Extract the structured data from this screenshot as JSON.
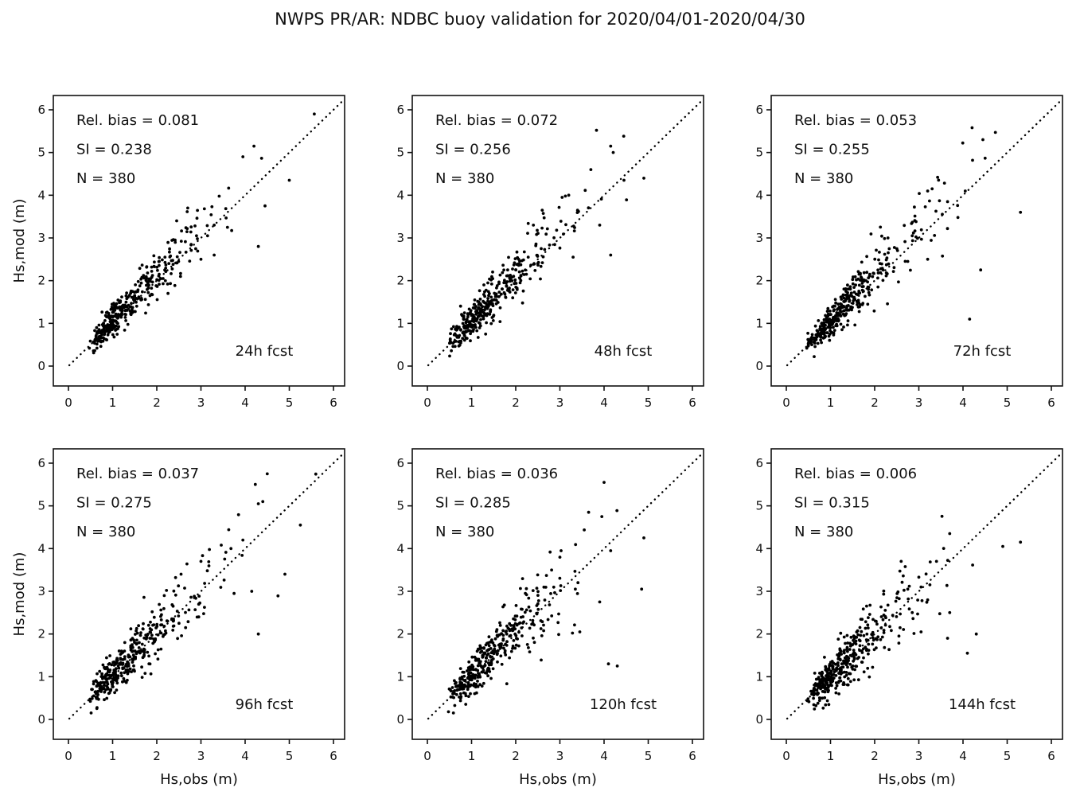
{
  "figure": {
    "title": "NWPS PR/AR: NDBC buoy validation for 2020/04/01-2020/04/30",
    "background_color": "#ffffff",
    "foreground_color": "#111111",
    "point_color": "#000000"
  },
  "axes": {
    "xlabel": "Hs,obs (m)",
    "ylabel": "Hs,mod (m)",
    "xlim": [
      0,
      6
    ],
    "ylim": [
      0,
      6
    ],
    "xticks": [
      "0",
      "1",
      "2",
      "3",
      "4",
      "5",
      "6"
    ],
    "yticks": [
      "0",
      "1",
      "2",
      "3",
      "4",
      "5",
      "6"
    ],
    "grid": false,
    "reference_line": {
      "type": "dotted",
      "from": [
        0,
        0
      ],
      "to": [
        6,
        6
      ],
      "meaning": "1:1 line"
    }
  },
  "chart_data": [
    {
      "type": "scatter",
      "fcst_label": "24h fcst",
      "stats_lines": [
        "Rel. bias =  0.081",
        "SI =  0.238",
        "N = 380"
      ],
      "stats": {
        "rel_bias": 0.081,
        "si": 0.238,
        "n": 380
      },
      "xlabel": "Hs,obs (m)",
      "ylabel": "Hs,mod (m)",
      "xlim": [
        0,
        6
      ],
      "ylim": [
        0,
        6
      ],
      "cluster": {
        "n": 367,
        "seed": 101,
        "x_min": 0.45,
        "x_scale": 0.52,
        "bias": 0.081,
        "si": 0.238
      },
      "outliers": [
        [
          3.3,
          3.3
        ],
        [
          2.7,
          3.7
        ],
        [
          3.0,
          2.5
        ],
        [
          3.6,
          3.25
        ],
        [
          3.3,
          2.6
        ],
        [
          3.95,
          4.9
        ],
        [
          4.2,
          5.15
        ],
        [
          5.0,
          4.35
        ],
        [
          4.3,
          2.8
        ],
        [
          2.45,
          3.4
        ],
        [
          3.15,
          3.05
        ],
        [
          4.45,
          3.75
        ],
        [
          2.9,
          3.05
        ]
      ]
    },
    {
      "type": "scatter",
      "fcst_label": "48h fcst",
      "stats_lines": [
        "Rel. bias =  0.072",
        "SI =  0.256",
        "N = 380"
      ],
      "stats": {
        "rel_bias": 0.072,
        "si": 0.256,
        "n": 380
      },
      "xlabel": "Hs,obs (m)",
      "ylabel": "Hs,mod (m)",
      "xlim": [
        0,
        6
      ],
      "ylim": [
        0,
        6
      ],
      "cluster": {
        "n": 368,
        "seed": 202,
        "x_min": 0.45,
        "x_scale": 0.52,
        "bias": 0.072,
        "si": 0.256
      },
      "outliers": [
        [
          4.15,
          5.15
        ],
        [
          4.9,
          4.4
        ],
        [
          3.7,
          4.6
        ],
        [
          4.45,
          4.35
        ],
        [
          3.2,
          4.0
        ],
        [
          3.05,
          3.95
        ],
        [
          3.4,
          3.65
        ],
        [
          3.9,
          3.3
        ],
        [
          2.6,
          3.65
        ],
        [
          4.15,
          2.6
        ],
        [
          3.3,
          2.55
        ],
        [
          2.4,
          3.3
        ]
      ]
    },
    {
      "type": "scatter",
      "fcst_label": "72h fcst",
      "stats_lines": [
        "Rel. bias =  0.053",
        "SI =  0.255",
        "N = 380"
      ],
      "stats": {
        "rel_bias": 0.053,
        "si": 0.255,
        "n": 380
      },
      "xlabel": "Hs,obs (m)",
      "ylabel": "Hs,mod (m)",
      "xlim": [
        0,
        6
      ],
      "ylim": [
        0,
        6
      ],
      "cluster": {
        "n": 368,
        "seed": 303,
        "x_min": 0.45,
        "x_scale": 0.52,
        "bias": 0.053,
        "si": 0.255
      },
      "outliers": [
        [
          4.45,
          5.3
        ],
        [
          4.05,
          4.1
        ],
        [
          3.2,
          4.1
        ],
        [
          5.3,
          3.6
        ],
        [
          4.4,
          2.25
        ],
        [
          4.15,
          1.1
        ],
        [
          2.85,
          3.05
        ],
        [
          3.65,
          3.85
        ],
        [
          2.3,
          3.0
        ],
        [
          3.3,
          4.15
        ],
        [
          2.75,
          2.45
        ],
        [
          3.2,
          2.5
        ]
      ]
    },
    {
      "type": "scatter",
      "fcst_label": "96h fcst",
      "stats_lines": [
        "Rel. bias =  0.037",
        "SI =  0.275",
        "N = 380"
      ],
      "stats": {
        "rel_bias": 0.037,
        "si": 0.275,
        "n": 380
      },
      "xlabel": "Hs,obs (m)",
      "ylabel": "Hs,mod (m)",
      "xlim": [
        0,
        6
      ],
      "ylim": [
        0,
        6
      ],
      "cluster": {
        "n": 367,
        "seed": 404,
        "x_min": 0.45,
        "x_scale": 0.52,
        "bias": 0.037,
        "si": 0.275
      },
      "outliers": [
        [
          4.5,
          5.75
        ],
        [
          4.4,
          5.1
        ],
        [
          4.3,
          5.05
        ],
        [
          5.25,
          4.55
        ],
        [
          3.95,
          4.2
        ],
        [
          3.68,
          4.0
        ],
        [
          4.9,
          3.4
        ],
        [
          3.0,
          3.7
        ],
        [
          4.3,
          2.0
        ],
        [
          4.15,
          3.0
        ],
        [
          2.95,
          2.4
        ],
        [
          2.55,
          3.4
        ],
        [
          3.75,
          2.95
        ]
      ]
    },
    {
      "type": "scatter",
      "fcst_label": "120h fcst",
      "stats_lines": [
        "Rel. bias =  0.036",
        "SI =  0.285",
        "N = 380"
      ],
      "stats": {
        "rel_bias": 0.036,
        "si": 0.285,
        "n": 380
      },
      "xlabel": "Hs,obs (m)",
      "ylabel": "Hs,mod (m)",
      "xlim": [
        0,
        6
      ],
      "ylim": [
        0,
        6
      ],
      "cluster": {
        "n": 368,
        "seed": 505,
        "x_min": 0.45,
        "x_scale": 0.52,
        "bias": 0.036,
        "si": 0.285
      },
      "outliers": [
        [
          4.0,
          5.55
        ],
        [
          3.65,
          4.85
        ],
        [
          3.95,
          4.75
        ],
        [
          4.9,
          4.25
        ],
        [
          3.0,
          3.8
        ],
        [
          4.85,
          3.05
        ],
        [
          4.1,
          1.3
        ],
        [
          4.3,
          1.25
        ],
        [
          3.45,
          2.05
        ],
        [
          3.9,
          2.75
        ],
        [
          3.35,
          3.05
        ],
        [
          4.15,
          3.95
        ]
      ]
    },
    {
      "type": "scatter",
      "fcst_label": "144h fcst",
      "stats_lines": [
        "Rel. bias =  0.006",
        "SI =  0.315",
        "N = 380"
      ],
      "stats": {
        "rel_bias": 0.006,
        "si": 0.315,
        "n": 380
      },
      "xlabel": "Hs,obs (m)",
      "ylabel": "Hs,mod (m)",
      "xlim": [
        0,
        6
      ],
      "ylim": [
        0,
        6
      ],
      "cluster": {
        "n": 365,
        "seed": 606,
        "x_min": 0.45,
        "x_scale": 0.52,
        "bias": 0.006,
        "si": 0.315
      },
      "outliers": [
        [
          3.7,
          4.35
        ],
        [
          4.9,
          4.05
        ],
        [
          5.3,
          4.15
        ],
        [
          2.6,
          3.7
        ],
        [
          3.05,
          3.1
        ],
        [
          2.75,
          3.05
        ],
        [
          3.7,
          2.5
        ],
        [
          4.3,
          2.0
        ],
        [
          4.1,
          1.55
        ],
        [
          2.55,
          1.95
        ],
        [
          3.25,
          3.15
        ],
        [
          3.65,
          1.9
        ],
        [
          3.05,
          2.05
        ],
        [
          2.85,
          2.5
        ],
        [
          3.4,
          3.7
        ]
      ]
    }
  ]
}
